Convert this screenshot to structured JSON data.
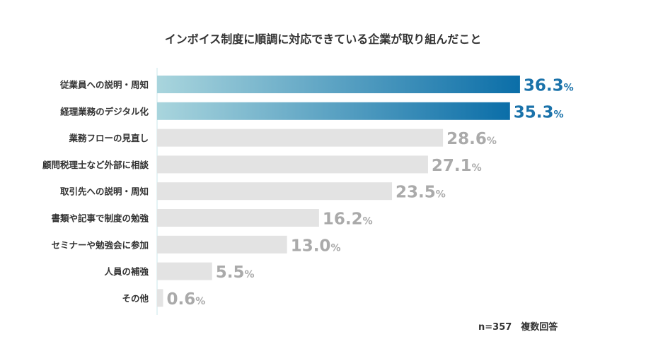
{
  "chart_data": {
    "type": "bar",
    "orientation": "horizontal",
    "title": "インボイス制度に順調に対応できている企業が取り組んだこと",
    "categories": [
      "従業員への説明・周知",
      "経理業務のデジタル化",
      "業務フローの見直し",
      "顧問税理士など外部に相談",
      "取引先への説明・周知",
      "書類や記事で制度の勉強",
      "セミナーや勉強会に参加",
      "人員の補強",
      "その他"
    ],
    "values": [
      36.3,
      35.3,
      28.6,
      27.1,
      23.5,
      16.2,
      13.0,
      5.5,
      0.6
    ],
    "value_labels": [
      "36.3",
      "35.3",
      "28.6",
      "27.1",
      "23.5",
      "16.2",
      "13.0",
      "5.5",
      "0.6"
    ],
    "unit": "%",
    "highlight_count": 2,
    "grid": false,
    "colors": {
      "highlight_start": "#a9d5dd",
      "highlight_end": "#0b6ea8",
      "highlight_text": "#1a72aa",
      "other_bar": "#e3e3e3",
      "other_text": "#aaaaaa",
      "axis": "#dceff2"
    },
    "note": "n=357　複数回答"
  }
}
